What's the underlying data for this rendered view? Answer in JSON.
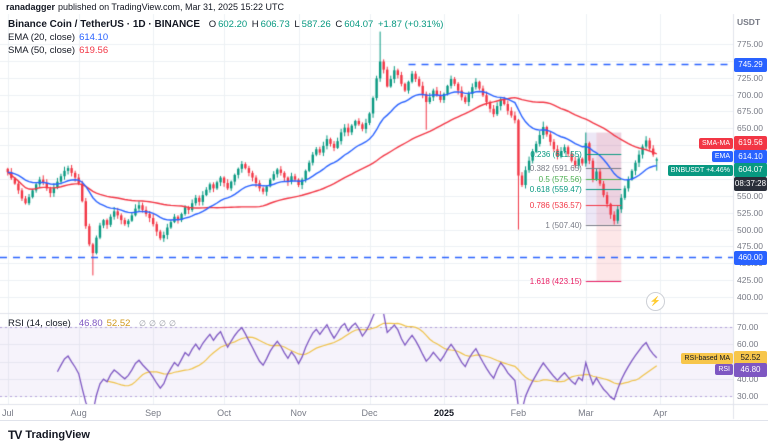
{
  "attribution": {
    "author": "ranadagger",
    "text": "published on TradingView.com, Mar 31, 2025 15:22 UTC"
  },
  "legend": {
    "title": "Binance Coin / TetherUS · 1D · BINANCE",
    "ohlc": {
      "o_label": "O",
      "o": "602.20",
      "h_label": "H",
      "h": "606.73",
      "l_label": "L",
      "l": "587.26",
      "c_label": "C",
      "c": "604.07",
      "change": "+1.87 (+0.31%)"
    },
    "ema": {
      "label": "EMA (20, close)",
      "value": "614.10"
    },
    "sma": {
      "label": "SMA (50, close)",
      "value": "619.56"
    }
  },
  "rsi_legend": {
    "label": "RSI (14, close)",
    "value": "46.80",
    "ma_value": "52.52",
    "icons": [
      "∅",
      "∅",
      "∅",
      "∅"
    ]
  },
  "price_axis": {
    "currency": "USDT",
    "ticks": [
      "775.00",
      "750.00",
      "725.00",
      "700.00",
      "675.00",
      "650.00",
      "625.00",
      "600.00",
      "575.00",
      "550.00",
      "525.00",
      "500.00",
      "475.00",
      "450.00",
      "425.00",
      "400.00"
    ]
  },
  "rsi_axis": {
    "ticks": [
      "70.00",
      "60.00",
      "50.00",
      "40.00",
      "30.00"
    ]
  },
  "badges": {
    "upper_level": {
      "value": "745.29"
    },
    "sma": {
      "label": "SMA-MA",
      "value": "619.56"
    },
    "ema": {
      "label": "EMA",
      "value": "614.10"
    },
    "symbol": {
      "label": "BNBUSDT",
      "change": "+4.46%",
      "value": "604.07"
    },
    "countdown": {
      "value": "08:37:28"
    },
    "lower_level": {
      "value": "460.00"
    },
    "rsi_ma": {
      "label": "RSI-based MA",
      "value": "52.52"
    },
    "rsi": {
      "label": "RSI",
      "value": "46.80"
    }
  },
  "reaction": {
    "icon": "⚡"
  },
  "footer": {
    "logo_mark": "TV",
    "logo": "TradingView"
  },
  "colors": {
    "up": "#089981",
    "down": "#F23645",
    "ema": "#2962FF",
    "sma": "#F23645",
    "rsi": "#7E57C2",
    "rsi_ma": "#EFC24A",
    "level": "#2962FF",
    "grid": "#EDF0F4",
    "badge_yellow": "#F7C64B",
    "countdown_bg": "#2A2E39"
  },
  "chart_data": {
    "type": "candlestick",
    "symbol": "BNBUSDT",
    "exchange": "BINANCE",
    "interval": "1D",
    "title": "Binance Coin / TetherUS",
    "x_range": {
      "start": "Jul 2024",
      "end": "Apr 2025"
    },
    "ylim": [
      400,
      775
    ],
    "total_slots": 205,
    "closes": [
      585,
      576,
      568,
      558,
      546,
      539,
      548,
      558,
      567,
      574,
      569,
      561,
      554,
      562,
      571,
      579,
      587,
      591,
      584,
      577,
      568,
      542,
      505,
      478,
      465,
      488,
      506,
      514,
      507,
      519,
      527,
      521,
      514,
      508,
      513,
      521,
      531,
      536,
      529,
      523,
      517,
      508,
      497,
      487,
      492,
      503,
      511,
      519,
      514,
      523,
      533,
      529,
      539,
      547,
      541,
      551,
      559,
      567,
      561,
      570,
      577,
      569,
      561,
      571,
      581,
      590,
      597,
      591,
      584,
      577,
      569,
      561,
      556,
      564,
      574,
      582,
      589,
      584,
      577,
      571,
      579,
      574,
      566,
      574,
      587,
      599,
      611,
      619,
      614,
      624,
      634,
      627,
      621,
      631,
      644,
      651,
      644,
      654,
      661,
      656,
      649,
      658,
      672,
      695,
      724,
      749,
      737,
      712,
      723,
      736,
      729,
      716,
      706,
      719,
      731,
      723,
      713,
      701,
      689,
      696,
      706,
      699,
      692,
      701,
      713,
      723,
      716,
      706,
      696,
      689,
      701,
      711,
      719,
      709,
      699,
      689,
      679,
      671,
      683,
      693,
      686,
      676,
      669,
      662,
      580,
      566,
      588,
      602,
      615,
      627,
      640,
      652,
      641,
      630,
      619,
      609,
      616,
      622,
      612,
      602,
      595,
      605,
      598,
      628,
      602,
      574,
      586,
      568,
      551,
      538,
      522,
      513,
      530,
      547,
      561,
      574,
      587,
      599,
      611,
      623,
      632,
      620,
      611,
      604
    ],
    "wick_overrides": {
      "24": {
        "low": 432
      },
      "105": {
        "high": 793.4
      },
      "118": {
        "low": 648
      },
      "144": {
        "low": 500
      },
      "151": {
        "high": 660
      },
      "163": {
        "high": 643.8
      },
      "171": {
        "low": 507.4
      },
      "183": {
        "open": 602.2,
        "high": 606.73,
        "low": 587.26
      }
    },
    "month_ticks": [
      {
        "label": "Jul",
        "index": 0
      },
      {
        "label": "Aug",
        "index": 20
      },
      {
        "label": "Sep",
        "index": 41
      },
      {
        "label": "Oct",
        "index": 61
      },
      {
        "label": "Nov",
        "index": 82
      },
      {
        "label": "Dec",
        "index": 102
      },
      {
        "label": "2025",
        "index": 123,
        "bold": true
      },
      {
        "label": "Feb",
        "index": 144
      },
      {
        "label": "Mar",
        "index": 163
      },
      {
        "label": "Apr",
        "index": 184
      }
    ],
    "overlays": {
      "ema_period": 20,
      "ema_value": 614.1,
      "sma_period": 50,
      "sma_value": 619.56
    },
    "rsi": {
      "period": 14,
      "value": 46.8,
      "ma_value": 52.52,
      "upper_band": 70,
      "lower_band": 30
    },
    "horizontal_lines": [
      {
        "price": 745.29,
        "style": "dashed",
        "color": "#2962FF",
        "from_index": 113
      },
      {
        "price": 460.0,
        "style": "dashed",
        "color": "#2962FF",
        "from_index": 0
      }
    ],
    "fib_retracement": {
      "start_index": 163,
      "end_index": 173,
      "pink_start_index": 166,
      "pink_end_index": 173,
      "high": 643.72,
      "low": 507.4,
      "ext_price": 423.15,
      "levels": [
        {
          "ratio": "0.236",
          "price": 611.55,
          "label": "0.236 (611.55)",
          "color": "#089981"
        },
        {
          "ratio": "0.382",
          "price": 591.65,
          "label": "0.382 (591.65)",
          "color": "#787B86"
        },
        {
          "ratio": "0.5",
          "price": 575.56,
          "label": "0.5 (575.56)",
          "color": "#4CAF50"
        },
        {
          "ratio": "0.618",
          "price": 559.47,
          "label": "0.618 (559.47)",
          "color": "#089981"
        },
        {
          "ratio": "0.786",
          "price": 536.57,
          "label": "0.786 (536.57)",
          "color": "#F23645"
        },
        {
          "ratio": "1",
          "price": 507.4,
          "label": "1 (507.40)",
          "color": "#787B86"
        },
        {
          "ratio": "1.618",
          "price": 423.15,
          "label": "1.618 (423.15)",
          "color": "#E91E63"
        }
      ]
    }
  }
}
